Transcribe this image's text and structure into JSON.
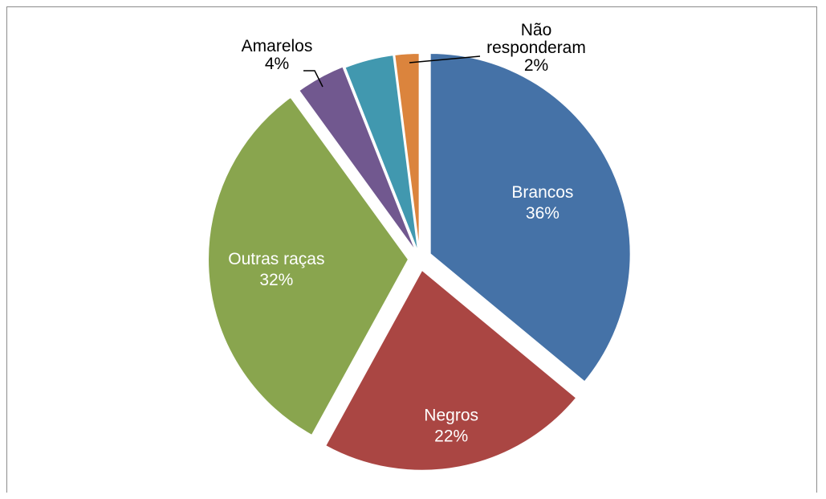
{
  "chart_data": {
    "type": "pie",
    "slices": [
      {
        "label": "Brancos",
        "pct": "36%",
        "value": 36,
        "color": "#4572a7",
        "label_position": "inside"
      },
      {
        "label": "Negros",
        "pct": "22%",
        "value": 22,
        "color": "#aa4643",
        "label_position": "inside"
      },
      {
        "label": "Outras raças",
        "pct": "32%",
        "value": 32,
        "color": "#89a54e",
        "label_position": "inside"
      },
      {
        "label": "Amarelos",
        "pct": "4%",
        "value": 4,
        "color": "#71588f",
        "label_position": "outside"
      },
      {
        "label": "",
        "pct": "",
        "value": 4,
        "color": "#4198af",
        "label_position": "none"
      },
      {
        "label": "Não responderam",
        "pct": "2%",
        "value": 2,
        "color": "#db843d",
        "label_position": "outside"
      }
    ],
    "legend": "none",
    "start": "top, clockwise"
  }
}
